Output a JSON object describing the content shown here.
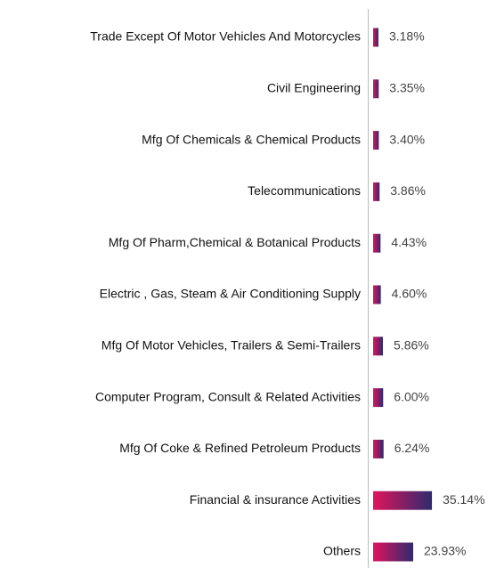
{
  "chart_data": {
    "type": "bar",
    "orientation": "horizontal",
    "categories": [
      "Trade Except Of Motor Vehicles And Motorcycles",
      "Civil Engineering",
      "Mfg Of Chemicals & Chemical Products",
      "Telecommunications",
      "Mfg Of Pharm,Chemical & Botanical Products",
      "Electric , Gas, Steam & Air Conditioning Supply",
      "Mfg Of Motor Vehicles, Trailers & Semi-Trailers",
      "Computer Program, Consult & Related Activities",
      "Mfg Of Coke & Refined Petroleum Products",
      "Financial & insurance Activities",
      "Others"
    ],
    "values": [
      3.18,
      3.35,
      3.4,
      3.86,
      4.43,
      4.6,
      5.86,
      6.0,
      6.24,
      35.14,
      23.93
    ],
    "value_labels": [
      "3.18%",
      "3.35%",
      "3.40%",
      "3.86%",
      "4.43%",
      "4.60%",
      "5.86%",
      "6.00%",
      "6.24%",
      "35.14%",
      "23.93%"
    ],
    "gradient": [
      "#e0145c",
      "#2f2a6e"
    ]
  }
}
